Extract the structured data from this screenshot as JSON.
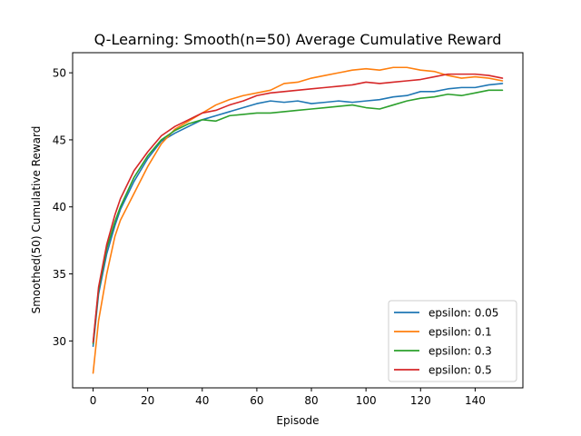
{
  "chart_data": {
    "type": "line",
    "title": "Q-Learning: Smooth(n=50) Average Cumulative Reward",
    "xlabel": "Episode",
    "ylabel": "Smoothed(50) Cumulative Reward",
    "xlim": [
      -7.5,
      157.5
    ],
    "ylim": [
      26.5,
      51.5
    ],
    "xticks": [
      0,
      20,
      40,
      60,
      80,
      100,
      120,
      140
    ],
    "yticks": [
      30,
      35,
      40,
      45,
      50
    ],
    "grid": false,
    "legend_position": "lower-right",
    "series": [
      {
        "name": "epsilon: 0.05",
        "color": "#1f77b4",
        "points": [
          [
            0,
            29.6
          ],
          [
            2,
            33.5
          ],
          [
            5,
            36.5
          ],
          [
            8,
            38.6
          ],
          [
            10,
            39.8
          ],
          [
            15,
            41.9
          ],
          [
            20,
            43.6
          ],
          [
            25,
            44.9
          ],
          [
            30,
            45.5
          ],
          [
            35,
            46.0
          ],
          [
            40,
            46.5
          ],
          [
            45,
            46.8
          ],
          [
            50,
            47.1
          ],
          [
            55,
            47.4
          ],
          [
            60,
            47.7
          ],
          [
            65,
            47.9
          ],
          [
            70,
            47.8
          ],
          [
            75,
            47.9
          ],
          [
            80,
            47.7
          ],
          [
            85,
            47.8
          ],
          [
            90,
            47.9
          ],
          [
            95,
            47.8
          ],
          [
            100,
            47.9
          ],
          [
            105,
            48.0
          ],
          [
            110,
            48.2
          ],
          [
            115,
            48.3
          ],
          [
            120,
            48.6
          ],
          [
            125,
            48.6
          ],
          [
            130,
            48.8
          ],
          [
            135,
            48.9
          ],
          [
            140,
            48.9
          ],
          [
            145,
            49.1
          ],
          [
            150,
            49.2
          ]
        ]
      },
      {
        "name": "epsilon: 0.1",
        "color": "#ff7f0e",
        "points": [
          [
            0,
            27.6
          ],
          [
            2,
            31.5
          ],
          [
            5,
            35.0
          ],
          [
            8,
            37.8
          ],
          [
            10,
            39.0
          ],
          [
            15,
            41.0
          ],
          [
            20,
            43.0
          ],
          [
            25,
            44.7
          ],
          [
            30,
            45.8
          ],
          [
            35,
            46.4
          ],
          [
            40,
            47.0
          ],
          [
            45,
            47.6
          ],
          [
            50,
            48.0
          ],
          [
            55,
            48.3
          ],
          [
            60,
            48.5
          ],
          [
            65,
            48.7
          ],
          [
            70,
            49.2
          ],
          [
            75,
            49.3
          ],
          [
            80,
            49.6
          ],
          [
            85,
            49.8
          ],
          [
            90,
            50.0
          ],
          [
            95,
            50.2
          ],
          [
            100,
            50.3
          ],
          [
            105,
            50.2
          ],
          [
            110,
            50.4
          ],
          [
            115,
            50.4
          ],
          [
            120,
            50.2
          ],
          [
            125,
            50.1
          ],
          [
            130,
            49.8
          ],
          [
            135,
            49.6
          ],
          [
            140,
            49.7
          ],
          [
            145,
            49.6
          ],
          [
            150,
            49.4
          ]
        ]
      },
      {
        "name": "epsilon: 0.3",
        "color": "#2ca02c",
        "points": [
          [
            0,
            29.8
          ],
          [
            2,
            33.8
          ],
          [
            5,
            36.9
          ],
          [
            8,
            38.9
          ],
          [
            10,
            40.0
          ],
          [
            15,
            42.2
          ],
          [
            20,
            43.8
          ],
          [
            25,
            45.0
          ],
          [
            30,
            45.7
          ],
          [
            35,
            46.2
          ],
          [
            40,
            46.5
          ],
          [
            45,
            46.4
          ],
          [
            50,
            46.8
          ],
          [
            55,
            46.9
          ],
          [
            60,
            47.0
          ],
          [
            65,
            47.0
          ],
          [
            70,
            47.1
          ],
          [
            75,
            47.2
          ],
          [
            80,
            47.3
          ],
          [
            85,
            47.4
          ],
          [
            90,
            47.5
          ],
          [
            95,
            47.6
          ],
          [
            100,
            47.4
          ],
          [
            105,
            47.3
          ],
          [
            110,
            47.6
          ],
          [
            115,
            47.9
          ],
          [
            120,
            48.1
          ],
          [
            125,
            48.2
          ],
          [
            130,
            48.4
          ],
          [
            135,
            48.3
          ],
          [
            140,
            48.5
          ],
          [
            145,
            48.7
          ],
          [
            150,
            48.7
          ]
        ]
      },
      {
        "name": "epsilon: 0.5",
        "color": "#d62728",
        "points": [
          [
            0,
            29.9
          ],
          [
            2,
            34.0
          ],
          [
            5,
            37.2
          ],
          [
            8,
            39.4
          ],
          [
            10,
            40.6
          ],
          [
            15,
            42.7
          ],
          [
            20,
            44.1
          ],
          [
            25,
            45.3
          ],
          [
            30,
            46.0
          ],
          [
            35,
            46.5
          ],
          [
            40,
            47.0
          ],
          [
            45,
            47.2
          ],
          [
            50,
            47.6
          ],
          [
            55,
            47.9
          ],
          [
            60,
            48.3
          ],
          [
            65,
            48.5
          ],
          [
            70,
            48.6
          ],
          [
            75,
            48.7
          ],
          [
            80,
            48.8
          ],
          [
            85,
            48.9
          ],
          [
            90,
            49.0
          ],
          [
            95,
            49.1
          ],
          [
            100,
            49.3
          ],
          [
            105,
            49.2
          ],
          [
            110,
            49.3
          ],
          [
            115,
            49.4
          ],
          [
            120,
            49.5
          ],
          [
            125,
            49.7
          ],
          [
            130,
            49.9
          ],
          [
            135,
            49.9
          ],
          [
            140,
            49.9
          ],
          [
            145,
            49.8
          ],
          [
            150,
            49.6
          ]
        ]
      }
    ]
  }
}
